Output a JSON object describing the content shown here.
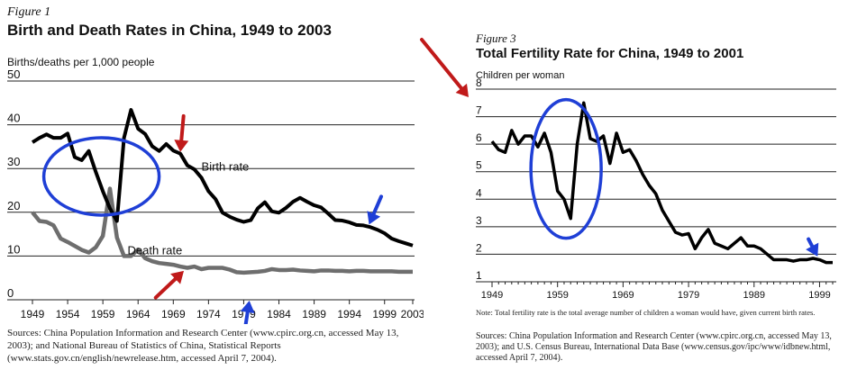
{
  "chart_data": [
    {
      "type": "line",
      "figure_label": "Figure 1",
      "title": "Birth and Death Rates in China, 1949 to 2003",
      "ylabel": "Births/deaths per 1,000 people",
      "xlabel": "",
      "ylim": [
        0,
        50
      ],
      "xlim": [
        1949,
        2003
      ],
      "yticks": [
        0,
        10,
        20,
        30,
        40,
        50
      ],
      "xticks": [
        1949,
        1954,
        1959,
        1964,
        1969,
        1974,
        1979,
        1984,
        1989,
        1994,
        1999,
        2003
      ],
      "grid": "horizontal",
      "series": [
        {
          "name": "Birth rate",
          "color": "#000000",
          "x": [
            1949,
            1950,
            1951,
            1952,
            1953,
            1954,
            1955,
            1956,
            1957,
            1958,
            1959,
            1960,
            1961,
            1962,
            1963,
            1964,
            1965,
            1966,
            1967,
            1968,
            1969,
            1970,
            1971,
            1972,
            1973,
            1974,
            1975,
            1976,
            1977,
            1978,
            1979,
            1980,
            1981,
            1982,
            1983,
            1984,
            1985,
            1986,
            1987,
            1988,
            1989,
            1990,
            1991,
            1992,
            1993,
            1994,
            1995,
            1996,
            1997,
            1998,
            1999,
            2000,
            2001,
            2002,
            2003
          ],
          "y": [
            36,
            37,
            37.8,
            37,
            37,
            38,
            32.6,
            31.9,
            34,
            29.2,
            24.8,
            20.9,
            18,
            37,
            43.4,
            39.1,
            37.9,
            35.1,
            34,
            35.6,
            34.1,
            33.4,
            30.7,
            29.8,
            27.9,
            24.8,
            23,
            19.9,
            19,
            18.3,
            17.8,
            18.2,
            20.9,
            22.3,
            20.2,
            19.9,
            21.0,
            22.4,
            23.3,
            22.4,
            21.6,
            21.1,
            19.7,
            18.2,
            18.1,
            17.7,
            17.1,
            17.0,
            16.6,
            16.0,
            15.2,
            14.0,
            13.4,
            12.9,
            12.4
          ]
        },
        {
          "name": "Death rate",
          "color": "#6e6e6e",
          "x": [
            1949,
            1950,
            1951,
            1952,
            1953,
            1954,
            1955,
            1956,
            1957,
            1958,
            1959,
            1960,
            1961,
            1962,
            1963,
            1964,
            1965,
            1966,
            1967,
            1968,
            1969,
            1970,
            1971,
            1972,
            1973,
            1974,
            1975,
            1976,
            1977,
            1978,
            1979,
            1980,
            1981,
            1982,
            1983,
            1984,
            1985,
            1986,
            1987,
            1988,
            1989,
            1990,
            1991,
            1992,
            1993,
            1994,
            1995,
            1996,
            1997,
            1998,
            1999,
            2000,
            2001,
            2002,
            2003
          ],
          "y": [
            20,
            18,
            17.8,
            17,
            14,
            13.2,
            12.3,
            11.4,
            10.8,
            12,
            14.6,
            25.4,
            14.2,
            10,
            10,
            11.5,
            9.5,
            8.8,
            8.4,
            8.2,
            8.0,
            7.6,
            7.3,
            7.6,
            7.0,
            7.3,
            7.3,
            7.3,
            6.9,
            6.3,
            6.2,
            6.3,
            6.4,
            6.6,
            7.0,
            6.8,
            6.8,
            6.9,
            6.7,
            6.6,
            6.5,
            6.7,
            6.7,
            6.6,
            6.6,
            6.5,
            6.6,
            6.6,
            6.5,
            6.5,
            6.5,
            6.5,
            6.4,
            6.4,
            6.4
          ]
        }
      ],
      "annotations": [
        "Birth rate",
        "Death rate"
      ],
      "source_text": "Sources: China Population Information and Research Center (www.cpirc.org.cn, accessed May 13, 2003); and National Bureau of Statistics of China, Statistical Reports (www.stats.gov.cn/english/newrelease.htm, accessed April 7, 2004)."
    },
    {
      "type": "line",
      "figure_label": "Figure 3",
      "title": "Total Fertility Rate for China, 1949 to 2001",
      "ylabel": "Children per woman",
      "xlabel": "",
      "ylim": [
        1,
        8
      ],
      "xlim": [
        1949,
        2001
      ],
      "yticks": [
        1,
        2,
        3,
        4,
        5,
        6,
        7,
        8
      ],
      "xticks": [
        1949,
        1959,
        1969,
        1979,
        1989,
        1999
      ],
      "grid": "horizontal",
      "series": [
        {
          "color": "#000000",
          "x": [
            1949,
            1950,
            1951,
            1952,
            1953,
            1954,
            1955,
            1956,
            1957,
            1958,
            1959,
            1960,
            1961,
            1962,
            1963,
            1964,
            1965,
            1966,
            1967,
            1968,
            1969,
            1970,
            1971,
            1972,
            1973,
            1974,
            1975,
            1976,
            1977,
            1978,
            1979,
            1980,
            1981,
            1982,
            1983,
            1984,
            1985,
            1986,
            1987,
            1988,
            1989,
            1990,
            1991,
            1992,
            1993,
            1994,
            1995,
            1996,
            1997,
            1998,
            1999,
            2000,
            2001
          ],
          "y": [
            6.1,
            5.8,
            5.7,
            6.5,
            6.0,
            6.3,
            6.3,
            5.9,
            6.4,
            5.7,
            4.3,
            4.0,
            3.3,
            6.0,
            7.5,
            6.2,
            6.1,
            6.3,
            5.3,
            6.4,
            5.7,
            5.8,
            5.4,
            4.9,
            4.5,
            4.2,
            3.6,
            3.2,
            2.8,
            2.7,
            2.75,
            2.2,
            2.6,
            2.9,
            2.4,
            2.3,
            2.2,
            2.4,
            2.6,
            2.3,
            2.3,
            2.2,
            2.0,
            1.8,
            1.8,
            1.8,
            1.75,
            1.8,
            1.8,
            1.85,
            1.8,
            1.7,
            1.7
          ]
        }
      ],
      "note_text": "Note: Total fertility rate is the total average number of children a woman would have, given current birth rates.",
      "source_text": "Sources: China Population Information and Research Center (www.cpirc.org.cn, accessed May 13, 2003); and U.S. Census Bureau, International Data Base (www.census.gov/ipc/www/idbnew.html, accessed April 7, 2004)."
    }
  ],
  "markup": {
    "red_arrow_color": "#c01a1a",
    "blue_arrow_color": "#1f3fd6",
    "circle_color": "#1f3fd6"
  }
}
